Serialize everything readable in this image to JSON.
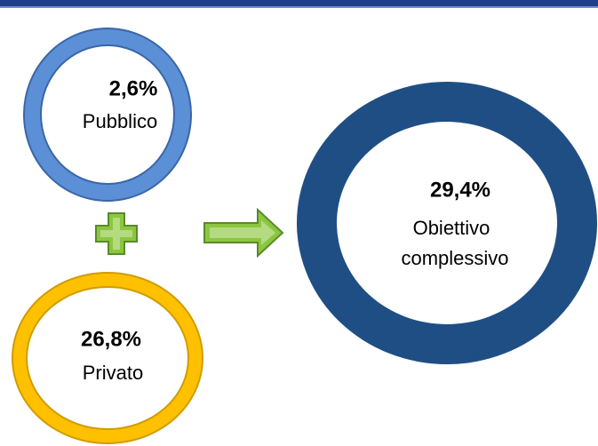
{
  "nodes": [
    {
      "value": "2,6%",
      "label": "Pubblico"
    },
    {
      "value": "26,8%",
      "label": "Privato"
    },
    {
      "value": "29,4%",
      "label": [
        "Obiettivo",
        "complessivo"
      ]
    }
  ]
}
